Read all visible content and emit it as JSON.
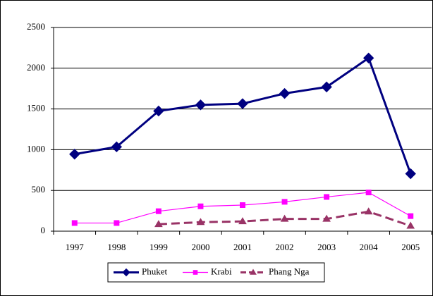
{
  "chart_data": {
    "type": "line",
    "categories": [
      "1997",
      "1998",
      "1999",
      "2000",
      "2001",
      "2002",
      "2003",
      "2004",
      "2005"
    ],
    "series": [
      {
        "name": "Phuket",
        "color": "#000080",
        "marker": "diamond",
        "dash": false,
        "values": [
          945,
          1035,
          1475,
          1550,
          1565,
          1690,
          1770,
          2125,
          705
        ]
      },
      {
        "name": "Krabi",
        "color": "#ff00ff",
        "marker": "square",
        "dash": false,
        "values": [
          100,
          100,
          245,
          305,
          320,
          360,
          420,
          475,
          185
        ]
      },
      {
        "name": "Phang Nga",
        "color": "#993366",
        "marker": "triangle",
        "dash": true,
        "values": [
          null,
          null,
          85,
          110,
          120,
          150,
          150,
          240,
          65
        ]
      }
    ],
    "ylim": [
      0,
      2500
    ],
    "yticks": [
      0,
      500,
      1000,
      1500,
      2000,
      2500
    ],
    "grid": true,
    "legend": "bottom"
  }
}
